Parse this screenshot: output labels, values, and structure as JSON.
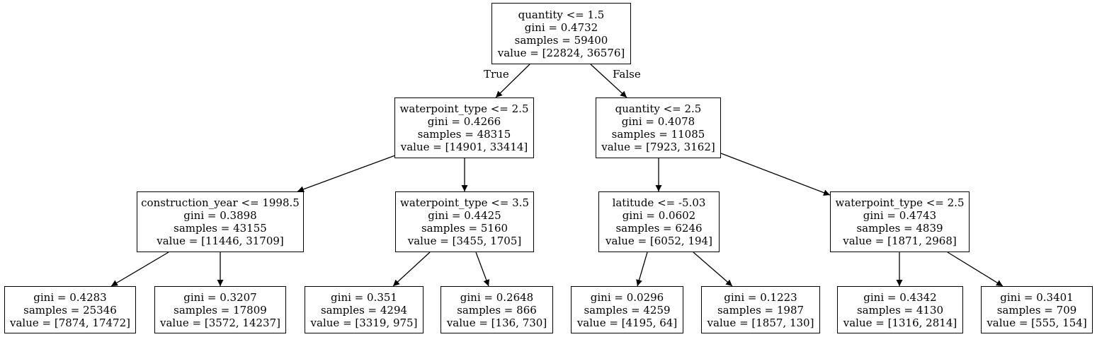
{
  "tree": {
    "n0": {
      "split": "quantity <= 1.5",
      "gini": "gini = 0.4732",
      "samples": "samples = 59400",
      "value": "value = [22824, 36576]"
    },
    "n1": {
      "split": "waterpoint_type <= 2.5",
      "gini": "gini = 0.4266",
      "samples": "samples = 48315",
      "value": "value = [14901, 33414]"
    },
    "n2": {
      "split": "quantity <= 2.5",
      "gini": "gini = 0.4078",
      "samples": "samples = 11085",
      "value": "value = [7923, 3162]"
    },
    "n3": {
      "split": "construction_year <= 1998.5",
      "gini": "gini = 0.3898",
      "samples": "samples = 43155",
      "value": "value = [11446, 31709]"
    },
    "n4": {
      "split": "waterpoint_type <= 3.5",
      "gini": "gini = 0.4425",
      "samples": "samples = 5160",
      "value": "value = [3455, 1705]"
    },
    "n5": {
      "split": "latitude <= -5.03",
      "gini": "gini = 0.0602",
      "samples": "samples = 6246",
      "value": "value = [6052, 194]"
    },
    "n6": {
      "split": "waterpoint_type <= 2.5",
      "gini": "gini = 0.4743",
      "samples": "samples = 4839",
      "value": "value = [1871, 2968]"
    },
    "n7": {
      "gini": "gini = 0.4283",
      "samples": "samples = 25346",
      "value": "value = [7874, 17472]"
    },
    "n8": {
      "gini": "gini = 0.3207",
      "samples": "samples = 17809",
      "value": "value = [3572, 14237]"
    },
    "n9": {
      "gini": "gini = 0.351",
      "samples": "samples = 4294",
      "value": "value = [3319, 975]"
    },
    "n10": {
      "gini": "gini = 0.2648",
      "samples": "samples = 866",
      "value": "value = [136, 730]"
    },
    "n11": {
      "gini": "gini = 0.0296",
      "samples": "samples = 4259",
      "value": "value = [4195, 64]"
    },
    "n12": {
      "gini": "gini = 0.1223",
      "samples": "samples = 1987",
      "value": "value = [1857, 130]"
    },
    "n13": {
      "gini": "gini = 0.4342",
      "samples": "samples = 4130",
      "value": "value = [1316, 2814]"
    },
    "n14": {
      "gini": "gini = 0.3401",
      "samples": "samples = 709",
      "value": "value = [555, 154]"
    }
  },
  "edge_labels": {
    "true": "True",
    "false": "False"
  },
  "colors": {
    "line": "#000000",
    "background": "#ffffff"
  }
}
